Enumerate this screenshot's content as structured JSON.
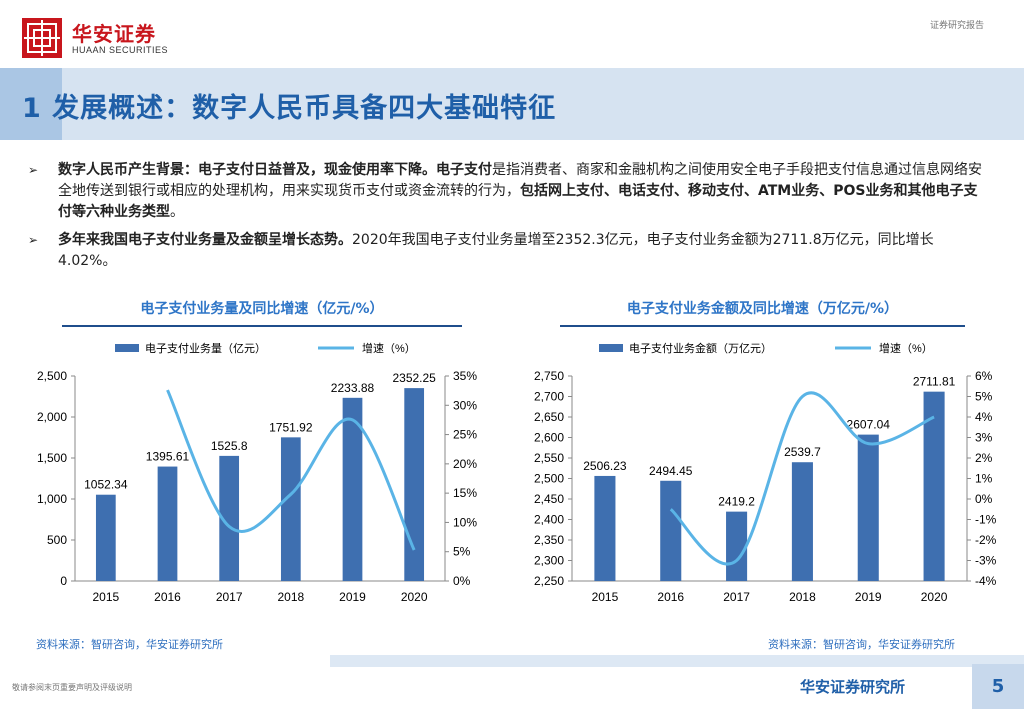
{
  "header": {
    "logo_cn": "华安证券",
    "logo_en": "HUAAN SECURITIES",
    "report_type": "证券研究报告"
  },
  "title": "1 发展概述：数字人民币具备四大基础特征",
  "bullets": [
    {
      "parts": [
        {
          "text": "数字人民币产生背景：电子支付日益普及，现金使用率下降。",
          "bold": true
        },
        {
          "text": "电子支付",
          "bold": true
        },
        {
          "text": "是指消费者、商家和金融机构之间使用安全电子手段把支付信息通过信息网络安全地传送到银行或相应的处理机构，用来实现货币支付或资金流转的行为，",
          "bold": false
        },
        {
          "text": "包括网上支付、电话支付、移动支付、ATM业务、POS业务和其他电子支付等六种业务类型",
          "bold": true
        },
        {
          "text": "。",
          "bold": false
        }
      ]
    },
    {
      "parts": [
        {
          "text": "多年来我国电子支付业务量及金额呈增长态势。",
          "bold": true
        },
        {
          "text": "2020年我国电子支付业务量增至2352.3亿元，电子支付业务金额为2711.8万亿元，同比增长4.02%。",
          "bold": false
        }
      ]
    }
  ],
  "colors": {
    "bar": "#3e6fb0",
    "line": "#5ab4e6",
    "accent": "#1f5fa8"
  },
  "chart_data": [
    {
      "type": "bar",
      "title": "电子支付业务量及同比增速（亿元/%）",
      "categories": [
        "2015",
        "2016",
        "2017",
        "2018",
        "2019",
        "2020"
      ],
      "series": [
        {
          "name": "电子支付业务量（亿元）",
          "type": "bar",
          "values": [
            1052.34,
            1395.61,
            1525.8,
            1751.92,
            2233.88,
            2352.25
          ],
          "labels": [
            "1052.34",
            "1395.61",
            "1525.8",
            "1751.92",
            "2233.88",
            "2352.25"
          ]
        },
        {
          "name": "增速（%）",
          "type": "line",
          "axis": "right",
          "values": [
            null,
            32.6,
            9.3,
            14.8,
            27.5,
            5.3
          ]
        }
      ],
      "ylim": [
        0,
        2500
      ],
      "yticks": [
        "0",
        "500",
        "1,000",
        "1,500",
        "2,000",
        "2,500"
      ],
      "y2lim": [
        0,
        35
      ],
      "y2ticks": [
        "0%",
        "5%",
        "10%",
        "15%",
        "20%",
        "25%",
        "30%",
        "35%"
      ]
    },
    {
      "type": "bar",
      "title": "电子支付业务金额及同比增速（万亿元/%）",
      "categories": [
        "2015",
        "2016",
        "2017",
        "2018",
        "2019",
        "2020"
      ],
      "series": [
        {
          "name": "电子支付业务金额（万亿元）",
          "type": "bar",
          "values": [
            2506.23,
            2494.45,
            2419.2,
            2539.7,
            2607.04,
            2711.81
          ],
          "labels": [
            "2506.23",
            "2494.45",
            "2419.2",
            "2539.7",
            "2607.04",
            "2711.81"
          ]
        },
        {
          "name": "增速（%）",
          "type": "line",
          "axis": "right",
          "values": [
            null,
            -0.5,
            -3.0,
            5.0,
            2.7,
            4.0
          ]
        }
      ],
      "ylim": [
        2250,
        2750
      ],
      "yticks": [
        "2,250",
        "2,300",
        "2,350",
        "2,400",
        "2,450",
        "2,500",
        "2,550",
        "2,600",
        "2,650",
        "2,700",
        "2,750"
      ],
      "y2lim": [
        -4,
        6
      ],
      "y2ticks": [
        "-4%",
        "-3%",
        "-2%",
        "-1%",
        "0%",
        "1%",
        "2%",
        "3%",
        "4%",
        "5%",
        "6%"
      ]
    }
  ],
  "sources": [
    "资料来源：智研咨询，华安证券研究所",
    "资料来源：智研咨询，华安证券研究所"
  ],
  "footer": {
    "disclaimer": "敬请参阅末页重要声明及评级说明",
    "org": "华安证券研究所",
    "page": "5"
  }
}
